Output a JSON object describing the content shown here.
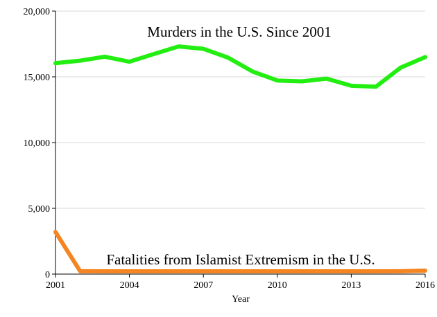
{
  "chart_data": {
    "type": "line",
    "title": "",
    "xlabel": "Year",
    "ylabel": "",
    "x": [
      2001,
      2002,
      2003,
      2004,
      2005,
      2006,
      2007,
      2008,
      2009,
      2010,
      2011,
      2012,
      2013,
      2014,
      2015,
      2016
    ],
    "xlim": [
      2001,
      2016
    ],
    "ylim": [
      0,
      20000
    ],
    "x_ticks": [
      2001,
      2004,
      2007,
      2010,
      2013,
      2016
    ],
    "x_tick_labels": [
      "2001",
      "2004",
      "2007",
      "2010",
      "2013",
      "2016"
    ],
    "y_ticks": [
      0,
      5000,
      10000,
      15000,
      20000
    ],
    "y_tick_labels": [
      "0",
      "5,000",
      "10,000",
      "15,000",
      "20,000"
    ],
    "grid": "horizontal",
    "legend": "none",
    "series": [
      {
        "name": "Murders in the U.S. Since 2001",
        "color": "#22ee11",
        "values": [
          16040,
          16230,
          16530,
          16150,
          16740,
          17310,
          17130,
          16460,
          15400,
          14720,
          14660,
          14860,
          14320,
          14250,
          15700,
          16500
        ]
      },
      {
        "name": "Fatalities from Islamist Extremism in the U.S.",
        "color": "#f48521",
        "values": [
          3200,
          220,
          210,
          210,
          210,
          210,
          210,
          210,
          210,
          210,
          210,
          210,
          210,
          210,
          220,
          260
        ]
      }
    ]
  }
}
